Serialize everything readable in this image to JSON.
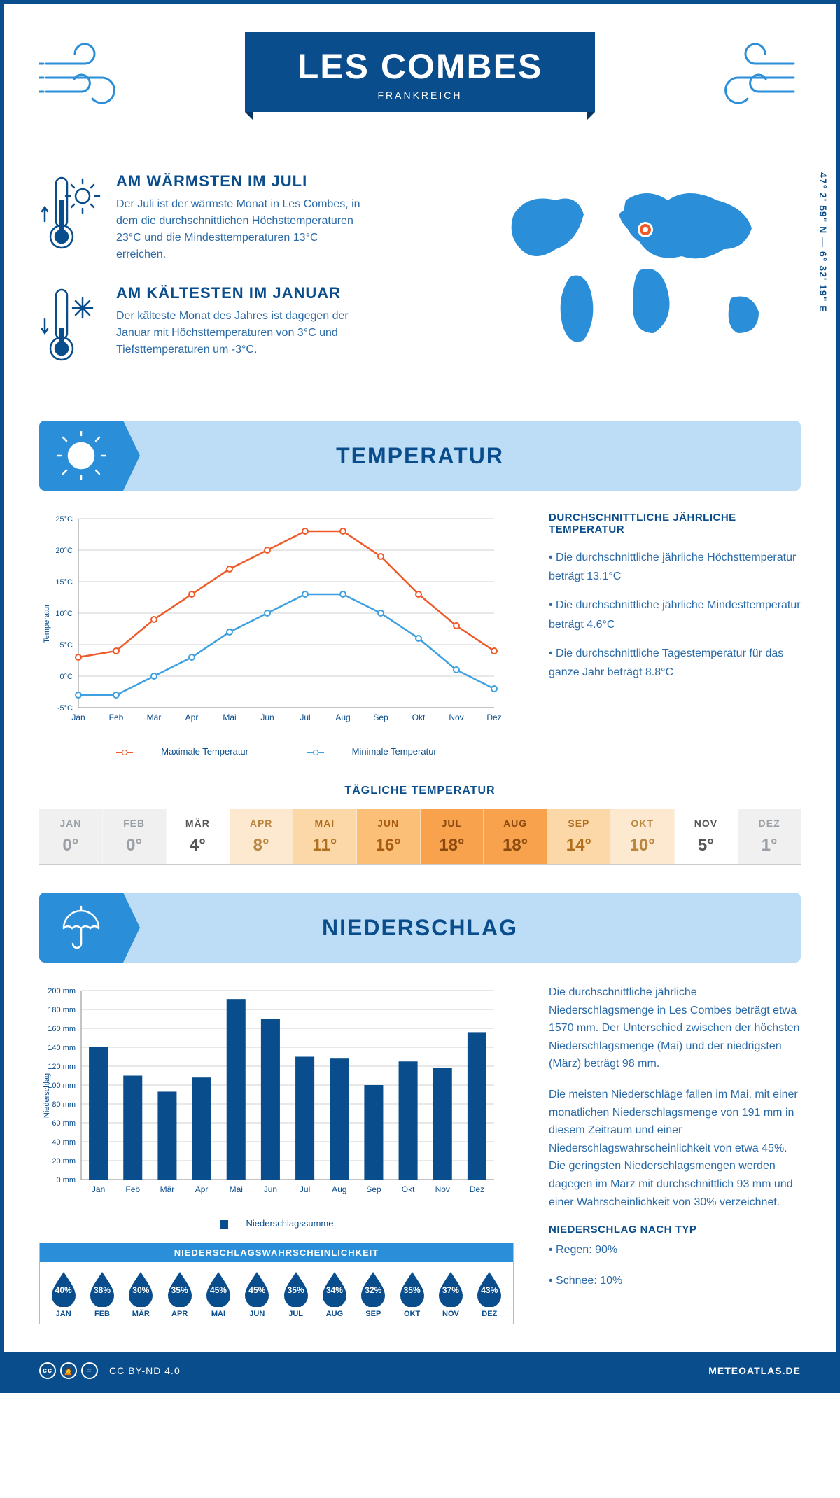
{
  "header": {
    "title": "LES COMBES",
    "subtitle": "FRANKREICH",
    "coords": "47° 2' 59\" N — 6° 32' 19\" E"
  },
  "colors": {
    "primary": "#0a4d8c",
    "accent": "#2a8fd8",
    "banner_bg": "#bdddf6",
    "max_line": "#f05a28",
    "min_line": "#3ea0e0",
    "bar_fill": "#0a4d8c",
    "grid": "#d0d0d0"
  },
  "warm": {
    "title": "AM WÄRMSTEN IM JULI",
    "text": "Der Juli ist der wärmste Monat in Les Combes, in dem die durchschnittlichen Höchsttemperaturen 23°C und die Mindesttemperaturen 13°C erreichen."
  },
  "cold": {
    "title": "AM KÄLTESTEN IM JANUAR",
    "text": "Der kälteste Monat des Jahres ist dagegen der Januar mit Höchsttemperaturen von 3°C und Tiefsttemperaturen um -3°C."
  },
  "temp_section": {
    "title": "TEMPERATUR",
    "info_title": "DURCHSCHNITTLICHE JÄHRLICHE TEMPERATUR",
    "bullet1": "• Die durchschnittliche jährliche Höchsttemperatur beträgt 13.1°C",
    "bullet2": "• Die durchschnittliche jährliche Mindesttemperatur beträgt 4.6°C",
    "bullet3": "• Die durchschnittliche Tagestemperatur für das ganze Jahr beträgt 8.8°C",
    "legend_max": "Maximale Temperatur",
    "legend_min": "Minimale Temperatur",
    "ylabel": "Temperatur",
    "months": [
      "Jan",
      "Feb",
      "Mär",
      "Apr",
      "Mai",
      "Jun",
      "Jul",
      "Aug",
      "Sep",
      "Okt",
      "Nov",
      "Dez"
    ],
    "max_series": [
      3,
      4,
      9,
      13,
      17,
      20,
      23,
      23,
      19,
      13,
      8,
      4
    ],
    "min_series": [
      -3,
      -3,
      0,
      3,
      7,
      10,
      13,
      13,
      10,
      6,
      1,
      -2
    ],
    "ylim": [
      -5,
      25
    ],
    "ytick_step": 5,
    "ytick_suffix": "°C"
  },
  "daily": {
    "title": "TÄGLICHE TEMPERATUR",
    "months": [
      "JAN",
      "FEB",
      "MÄR",
      "APR",
      "MAI",
      "JUN",
      "JUL",
      "AUG",
      "SEP",
      "OKT",
      "NOV",
      "DEZ"
    ],
    "values": [
      "0°",
      "0°",
      "4°",
      "8°",
      "11°",
      "16°",
      "18°",
      "18°",
      "14°",
      "10°",
      "5°",
      "1°"
    ],
    "bg_colors": [
      "#f0f0f0",
      "#f0f0f0",
      "#ffffff",
      "#fde9cf",
      "#fcd7a8",
      "#fbbf77",
      "#f9a24d",
      "#f9a24d",
      "#fcd7a8",
      "#fde9cf",
      "#ffffff",
      "#f0f0f0"
    ],
    "text_colors": [
      "#9aa0a6",
      "#9aa0a6",
      "#555555",
      "#b8863f",
      "#b07020",
      "#a85a10",
      "#8a4a10",
      "#8a4a10",
      "#b07020",
      "#b8863f",
      "#555555",
      "#9aa0a6"
    ]
  },
  "precip_section": {
    "title": "NIEDERSCHLAG",
    "ylabel": "Niederschlag",
    "legend": "Niederschlagssumme",
    "months": [
      "Jan",
      "Feb",
      "Mär",
      "Apr",
      "Mai",
      "Jun",
      "Jul",
      "Aug",
      "Sep",
      "Okt",
      "Nov",
      "Dez"
    ],
    "values_mm": [
      140,
      110,
      93,
      108,
      191,
      170,
      130,
      128,
      100,
      125,
      118,
      156
    ],
    "ylim": [
      0,
      200
    ],
    "ytick_step": 20,
    "ytick_suffix": " mm",
    "para1": "Die durchschnittliche jährliche Niederschlagsmenge in Les Combes beträgt etwa 1570 mm. Der Unterschied zwischen der höchsten Niederschlagsmenge (Mai) und der niedrigsten (März) beträgt 98 mm.",
    "para2": "Die meisten Niederschläge fallen im Mai, mit einer monatlichen Niederschlagsmenge von 191 mm in diesem Zeitraum und einer Niederschlagswahrscheinlichkeit von etwa 45%. Die geringsten Niederschlagsmengen werden dagegen im März mit durchschnittlich 93 mm und einer Wahrscheinlichkeit von 30% verzeichnet.",
    "type_title": "NIEDERSCHLAG NACH TYP",
    "type1": "• Regen: 90%",
    "type2": "• Schnee: 10%"
  },
  "prob": {
    "title": "NIEDERSCHLAGSWAHRSCHEINLICHKEIT",
    "months": [
      "JAN",
      "FEB",
      "MÄR",
      "APR",
      "MAI",
      "JUN",
      "JUL",
      "AUG",
      "SEP",
      "OKT",
      "NOV",
      "DEZ"
    ],
    "values": [
      "40%",
      "38%",
      "30%",
      "35%",
      "45%",
      "45%",
      "35%",
      "34%",
      "32%",
      "35%",
      "37%",
      "43%"
    ]
  },
  "footer": {
    "license": "CC BY-ND 4.0",
    "site": "METEOATLAS.DE"
  }
}
